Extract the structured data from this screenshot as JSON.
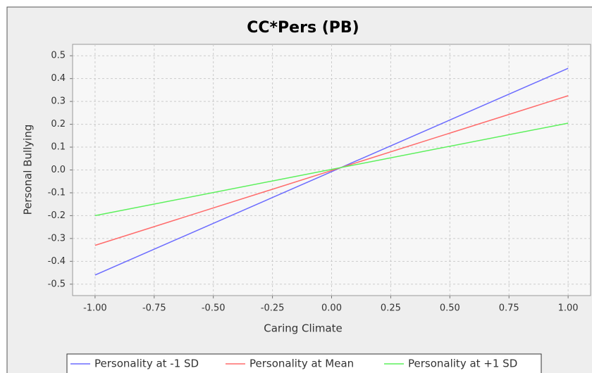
{
  "chart_data": {
    "type": "line",
    "title": "CC*Pers (PB)",
    "x_label": "Caring Climate",
    "y_label": "Personal Bullying",
    "x": [
      -1.0,
      1.0
    ],
    "series": [
      {
        "name": "Personality at -1 SD",
        "color": "#6b6bff",
        "values": [
          -0.46,
          0.445
        ]
      },
      {
        "name": "Personality at Mean",
        "color": "#ff6b6b",
        "values": [
          -0.33,
          0.325
        ]
      },
      {
        "name": "Personality at +1 SD",
        "color": "#5cf05c",
        "values": [
          -0.2,
          0.205
        ]
      }
    ],
    "xlim": [
      -1.095,
      1.095
    ],
    "ylim": [
      -0.55,
      0.55
    ],
    "xticks": [
      {
        "value": -1,
        "label": "-1.00"
      },
      {
        "value": -0.75,
        "label": "-0.75"
      },
      {
        "value": -0.5,
        "label": "-0.50"
      },
      {
        "value": -0.25,
        "label": "-0.25"
      },
      {
        "value": 0,
        "label": "0.00"
      },
      {
        "value": 0.25,
        "label": "0.25"
      },
      {
        "value": 0.5,
        "label": "0.50"
      },
      {
        "value": 0.75,
        "label": "0.75"
      },
      {
        "value": 1,
        "label": "1.00"
      }
    ],
    "yticks": [
      -0.5,
      -0.4,
      -0.3,
      -0.2,
      -0.1,
      {
        "value": 0,
        "label": "0.0"
      },
      0.1,
      0.2,
      0.3,
      0.4,
      0.5
    ],
    "grid": true,
    "legend": "bottom"
  }
}
